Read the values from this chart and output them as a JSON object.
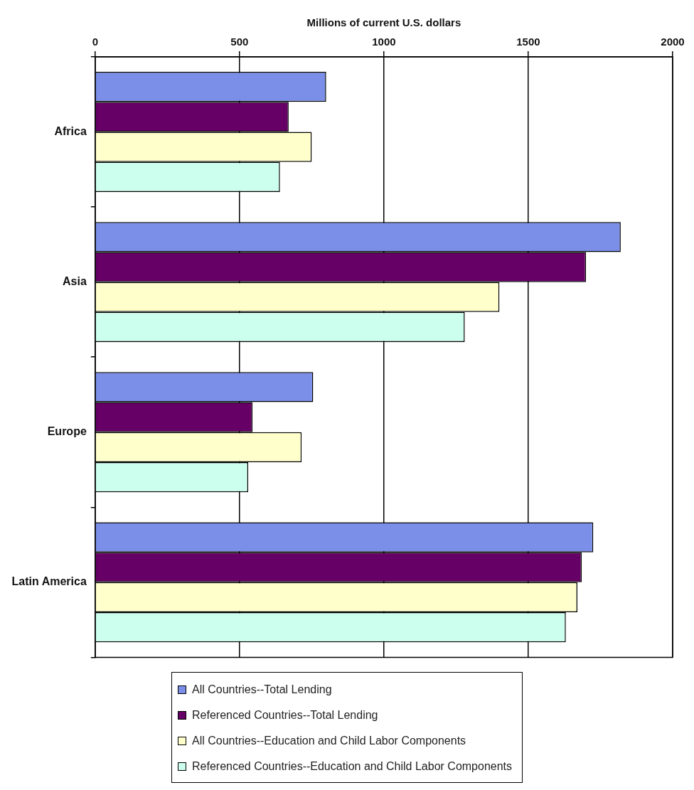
{
  "chart_data": {
    "type": "bar",
    "orientation": "horizontal",
    "xlabel": "Millions of current U.S. dollars",
    "categories": [
      "Africa",
      "Asia",
      "Europe",
      "Latin America"
    ],
    "series": [
      {
        "name": "All Countries--Total Lending",
        "color": "#7b8fe8",
        "values": [
          800,
          1820,
          755,
          1725
        ]
      },
      {
        "name": "Referenced Countries--Total Lending",
        "color": "#660066",
        "values": [
          670,
          1700,
          545,
          1685
        ]
      },
      {
        "name": "All Countries--Education and Child Labor Components",
        "color": "#ffffcc",
        "values": [
          750,
          1400,
          715,
          1670
        ]
      },
      {
        "name": "Referenced Countries--Education and Child Labor Components",
        "color": "#ccffee",
        "values": [
          640,
          1280,
          530,
          1630
        ]
      }
    ],
    "xlim": [
      0,
      2000
    ],
    "xticks": [
      0,
      500,
      1000,
      1500,
      2000
    ],
    "grid": "x",
    "legend": "bottom"
  }
}
